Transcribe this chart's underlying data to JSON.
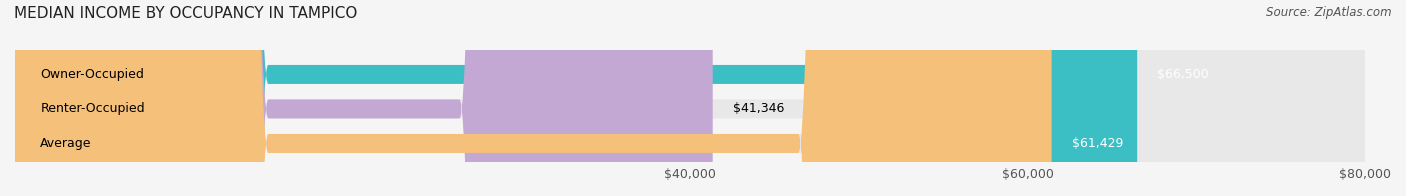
{
  "title": "MEDIAN INCOME BY OCCUPANCY IN TAMPICO",
  "source": "Source: ZipAtlas.com",
  "categories": [
    "Owner-Occupied",
    "Renter-Occupied",
    "Average"
  ],
  "values": [
    66500,
    41346,
    61429
  ],
  "bar_colors": [
    "#3bbfc4",
    "#c4a8d4",
    "#f5c07a"
  ],
  "bar_bg_color": "#e8e8e8",
  "value_labels": [
    "$66,500",
    "$41,346",
    "$61,429"
  ],
  "xlim": [
    0,
    80000
  ],
  "xticks": [
    40000,
    60000,
    80000
  ],
  "xtick_labels": [
    "$40,000",
    "$60,000",
    "$80,000"
  ],
  "title_fontsize": 11,
  "label_fontsize": 9,
  "source_fontsize": 8.5,
  "background_color": "#f5f5f5"
}
